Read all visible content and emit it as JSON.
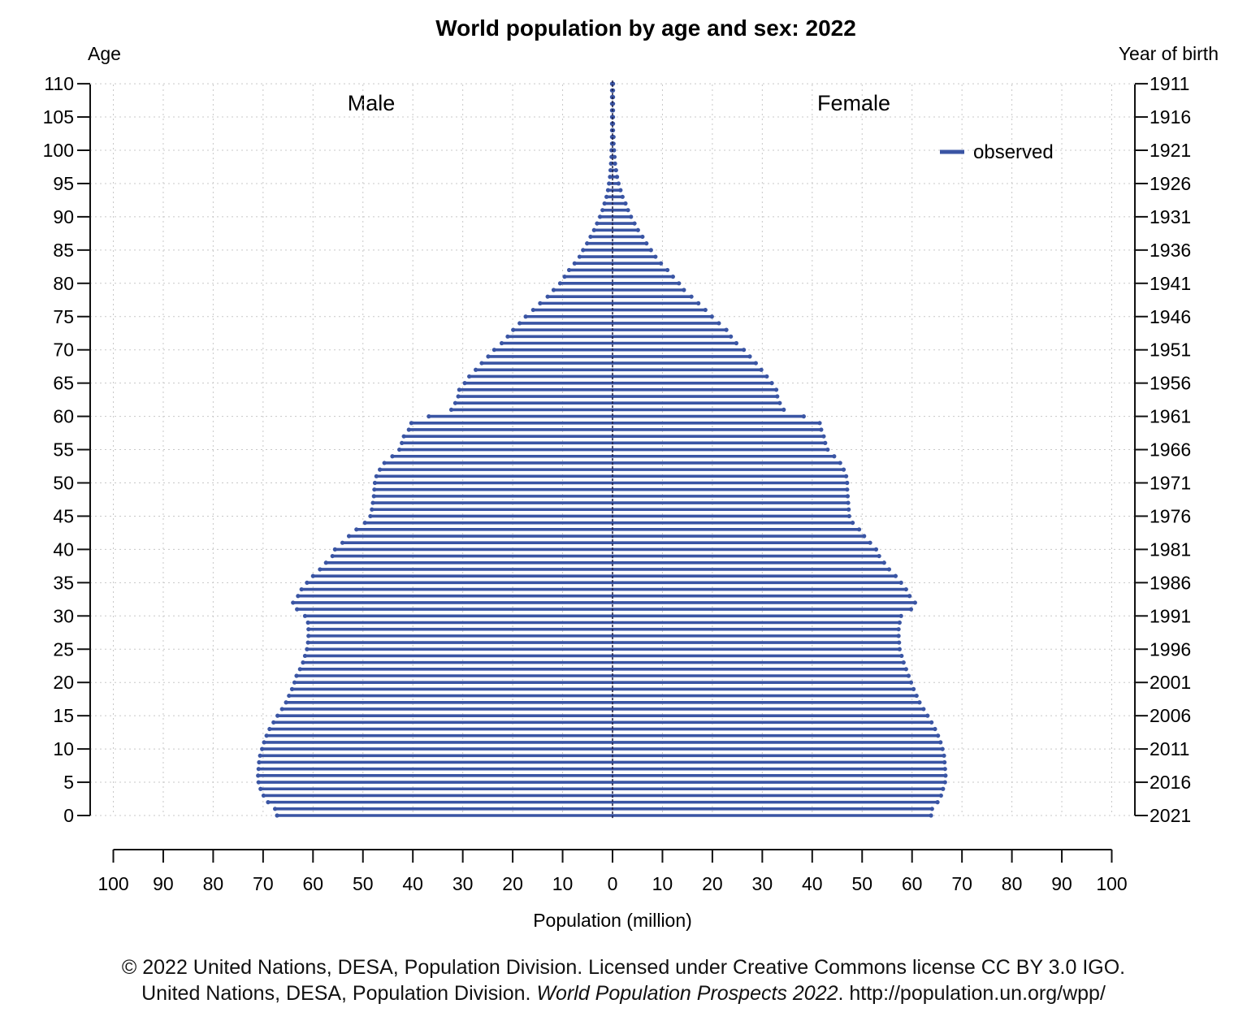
{
  "chart_data": {
    "type": "bar",
    "orientation": "horizontal-pyramid",
    "title": "World population by age and sex: 2022",
    "left_axis_title": "Age",
    "right_axis_title": "Year of birth",
    "xlabel": "Population (million)",
    "xlim": [
      -100,
      100
    ],
    "ylim": [
      0,
      110
    ],
    "age_ticks": [
      0,
      5,
      10,
      15,
      20,
      25,
      30,
      35,
      40,
      45,
      50,
      55,
      60,
      65,
      70,
      75,
      80,
      85,
      90,
      95,
      100,
      105,
      110
    ],
    "year_ticks": [
      "2021",
      "2016",
      "2011",
      "2006",
      "2001",
      "1996",
      "1991",
      "1986",
      "1981",
      "1976",
      "1971",
      "1966",
      "1961",
      "1956",
      "1951",
      "1946",
      "1941",
      "1936",
      "1931",
      "1926",
      "1921",
      "1916",
      "1911"
    ],
    "x_ticks": [
      100,
      90,
      80,
      70,
      60,
      50,
      40,
      30,
      20,
      10,
      0,
      10,
      20,
      30,
      40,
      50,
      60,
      70,
      80,
      90,
      100
    ],
    "male_label": "Male",
    "female_label": "Female",
    "grid": true,
    "legend": {
      "position": "top-right",
      "entries": [
        "observed"
      ]
    },
    "color": "#3a55a4",
    "ages": [
      0,
      1,
      2,
      3,
      4,
      5,
      6,
      7,
      8,
      9,
      10,
      11,
      12,
      13,
      14,
      15,
      16,
      17,
      18,
      19,
      20,
      21,
      22,
      23,
      24,
      25,
      26,
      27,
      28,
      29,
      30,
      31,
      32,
      33,
      34,
      35,
      36,
      37,
      38,
      39,
      40,
      41,
      42,
      43,
      44,
      45,
      46,
      47,
      48,
      49,
      50,
      51,
      52,
      53,
      54,
      55,
      56,
      57,
      58,
      59,
      60,
      61,
      62,
      63,
      64,
      65,
      66,
      67,
      68,
      69,
      70,
      71,
      72,
      73,
      74,
      75,
      76,
      77,
      78,
      79,
      80,
      81,
      82,
      83,
      84,
      85,
      86,
      87,
      88,
      89,
      90,
      91,
      92,
      93,
      94,
      95,
      96,
      97,
      98,
      99,
      100,
      101,
      102,
      103,
      104,
      105,
      106,
      107,
      108,
      109,
      110
    ],
    "series": [
      {
        "name": "Male",
        "values": [
          67.2,
          67.6,
          69.0,
          69.9,
          70.5,
          70.9,
          71.0,
          70.9,
          70.8,
          70.6,
          70.2,
          69.8,
          69.3,
          68.7,
          67.9,
          67.1,
          66.2,
          65.4,
          64.8,
          64.2,
          63.7,
          63.3,
          62.6,
          62.0,
          61.6,
          61.2,
          61.0,
          60.9,
          60.9,
          61.0,
          61.6,
          63.2,
          64.0,
          63.0,
          62.3,
          61.2,
          60.0,
          58.6,
          57.4,
          56.1,
          55.6,
          54.1,
          52.8,
          51.3,
          49.6,
          48.5,
          48.2,
          48.0,
          47.8,
          47.7,
          47.6,
          47.3,
          46.6,
          45.7,
          44.1,
          42.7,
          42.2,
          41.8,
          40.8,
          40.3,
          36.8,
          32.3,
          31.5,
          30.9,
          30.7,
          29.6,
          28.7,
          27.4,
          26.2,
          24.9,
          23.7,
          22.2,
          21.0,
          19.9,
          18.6,
          17.4,
          15.9,
          14.5,
          13.0,
          11.8,
          10.5,
          9.6,
          8.7,
          7.6,
          6.6,
          5.9,
          5.1,
          4.4,
          3.7,
          3.1,
          2.5,
          2.0,
          1.6,
          1.2,
          0.9,
          0.7,
          0.5,
          0.4,
          0.3,
          0.2,
          0.2,
          0.1,
          0.1,
          0.1,
          0.1,
          0.1,
          0.1,
          0.1,
          0.1,
          0.1,
          0.1
        ]
      },
      {
        "name": "Female",
        "values": [
          63.8,
          64.0,
          65.1,
          65.8,
          66.2,
          66.6,
          66.7,
          66.6,
          66.5,
          66.4,
          66.1,
          65.7,
          65.2,
          64.6,
          63.9,
          63.1,
          62.3,
          61.5,
          60.9,
          60.3,
          59.8,
          59.3,
          58.8,
          58.3,
          57.9,
          57.5,
          57.4,
          57.3,
          57.3,
          57.5,
          57.8,
          59.8,
          60.6,
          59.5,
          58.8,
          57.8,
          56.7,
          55.4,
          54.4,
          53.4,
          52.8,
          51.6,
          50.4,
          49.4,
          48.1,
          47.4,
          47.3,
          47.2,
          47.1,
          47.0,
          47.0,
          46.8,
          46.3,
          45.6,
          44.4,
          43.1,
          42.6,
          42.3,
          41.8,
          41.5,
          38.3,
          34.3,
          33.5,
          33.0,
          32.8,
          31.9,
          30.9,
          29.8,
          28.7,
          27.5,
          26.3,
          24.8,
          23.7,
          22.8,
          21.3,
          19.9,
          18.6,
          17.2,
          15.8,
          14.3,
          13.3,
          12.1,
          11.0,
          9.7,
          8.6,
          7.7,
          6.8,
          6.0,
          5.1,
          4.4,
          3.7,
          3.1,
          2.6,
          2.0,
          1.6,
          1.2,
          0.9,
          0.7,
          0.5,
          0.4,
          0.3,
          0.2,
          0.2,
          0.1,
          0.1,
          0.1,
          0.1,
          0.1,
          0.1,
          0.1,
          0.1
        ]
      }
    ]
  },
  "footer": {
    "line1": "© 2022 United Nations, DESA, Population Division. Licensed under Creative Commons license CC BY 3.0 IGO.",
    "line2_prefix": "United Nations, DESA, Population Division. ",
    "line2_italic": "World Population Prospects 2022",
    "line2_suffix": ". http://population.un.org/wpp/"
  }
}
